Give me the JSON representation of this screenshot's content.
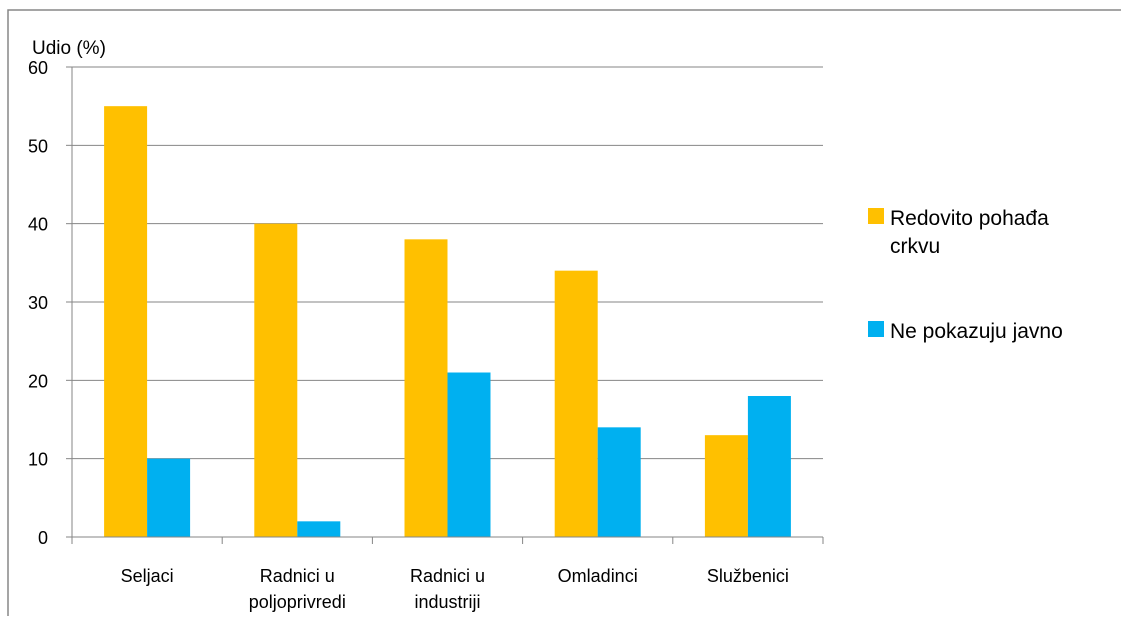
{
  "chart_data": {
    "type": "bar",
    "ylabel": "Udio (%)",
    "ylim": [
      0,
      60
    ],
    "yticks": [
      0,
      10,
      20,
      30,
      40,
      50,
      60
    ],
    "grid": true,
    "legend_position": "right",
    "categories": [
      [
        "Seljaci"
      ],
      [
        "Radnici u",
        "poljoprivredi"
      ],
      [
        "Radnici u",
        "industriji"
      ],
      [
        "Omladinci"
      ],
      [
        "Službenici"
      ]
    ],
    "series": [
      {
        "name": [
          "Redovito pohađa",
          "crkvu"
        ],
        "color": "#FFC000",
        "values": [
          55,
          40,
          38,
          34,
          13
        ]
      },
      {
        "name": [
          "Ne pokazuju javno"
        ],
        "color": "#00B0F0",
        "values": [
          10,
          2,
          21,
          14,
          18
        ]
      }
    ]
  }
}
